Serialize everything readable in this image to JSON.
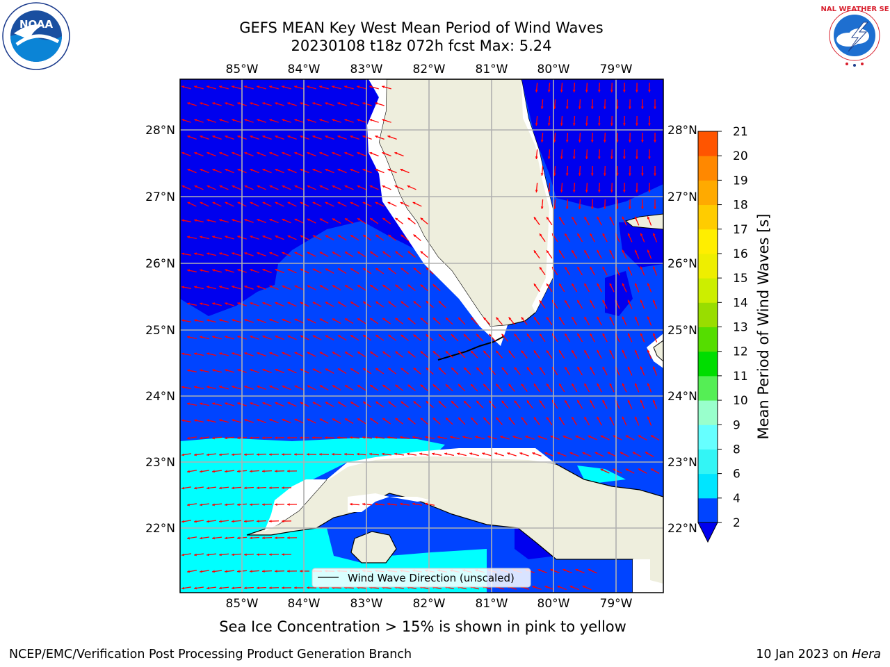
{
  "header": {
    "title_line1": "GEFS MEAN Key West Mean Period of Wind Waves",
    "title_line2": "20230108 t18z 072h fcst   Max: 5.24"
  },
  "logos": {
    "left": {
      "name": "noaa-logo",
      "text": "NOAA",
      "ring_text": "NATIONAL OCEANIC AND ATMOSPHERIC ADMINISTRATION · U.S. DEPARTMENT OF COMMERCE"
    },
    "right": {
      "name": "nws-logo",
      "ring_text": "NATIONAL WEATHER SERVICE"
    }
  },
  "map": {
    "lon_labels": [
      "85°W",
      "84°W",
      "83°W",
      "82°W",
      "81°W",
      "80°W",
      "79°W"
    ],
    "lat_labels": [
      "28°N",
      "27°N",
      "26°N",
      "25°N",
      "24°N",
      "23°N",
      "22°N"
    ],
    "legend_label": "Wind Wave Direction (unscaled)",
    "arrow_color": "#ff0000",
    "land_color": "#eeeedd",
    "grid_color": "#b0b0b0"
  },
  "colorbar": {
    "label": "Mean Period of Wind Waves [s]",
    "ticks": [
      "2",
      "4",
      "6",
      "8",
      "9",
      "10",
      "11",
      "12",
      "13",
      "14",
      "15",
      "16",
      "17",
      "18",
      "19",
      "20",
      "21"
    ],
    "colors": [
      "#0044ff",
      "#00e5ff",
      "#33f5f5",
      "#66ffff",
      "#99ffcc",
      "#55ee55",
      "#00dd00",
      "#55dd00",
      "#99dd00",
      "#ccee00",
      "#eeee00",
      "#ffee00",
      "#ffcc00",
      "#ffaa00",
      "#ff8800",
      "#ff5500",
      "#ff1100"
    ],
    "extend_color": "#0000ee"
  },
  "notes": {
    "sea_ice": "Sea Ice Concentration > 15% is shown in pink to yellow",
    "producer": "NCEP/EMC/Verification Post Processing Product Generation Branch",
    "date": "10 Jan 2023 on ",
    "machine": "Hera"
  }
}
